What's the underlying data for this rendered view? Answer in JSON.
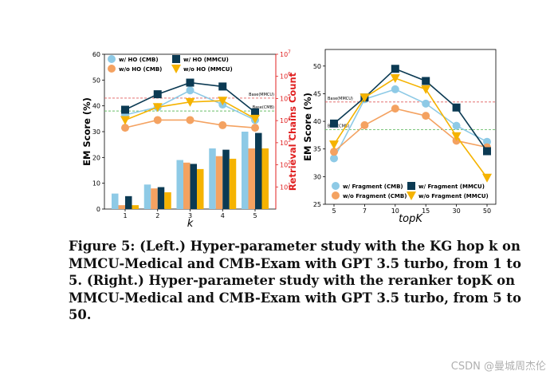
{
  "chart_data": [
    {
      "type": "bar+line",
      "xlabel": "k",
      "ylabel": "EM Score (%)",
      "y2label": "Retrieval Chains Count",
      "categories": [
        "1",
        "2",
        "3",
        "4",
        "5"
      ],
      "ylim": [
        0,
        60
      ],
      "yticks": [
        "0",
        "10",
        "20",
        "30",
        "40",
        "50",
        "60"
      ],
      "y2scale": "log",
      "y2lim": [
        1,
        10000000
      ],
      "y2ticks": [
        {
          "base": "10",
          "exp": "1",
          "value": 10
        },
        {
          "base": "10",
          "exp": "2",
          "value": 100
        },
        {
          "base": "10",
          "exp": "3",
          "value": 1000
        },
        {
          "base": "10",
          "exp": "4",
          "value": 10000
        },
        {
          "base": "10",
          "exp": "5",
          "value": 100000
        },
        {
          "base": "10",
          "exp": "6",
          "value": 1000000
        },
        {
          "base": "10",
          "exp": "7",
          "value": 10000000
        }
      ],
      "lines": [
        {
          "name": "w/ HO (CMB)",
          "color": "#8ecae6",
          "marker": "circle",
          "values": [
            36.5,
            39.5,
            46.0,
            40.5,
            34.5
          ]
        },
        {
          "name": "w/o HO (CMB)",
          "color": "#f4a261",
          "marker": "circle",
          "values": [
            31.5,
            34.5,
            34.5,
            32.5,
            31.5
          ]
        },
        {
          "name": "w/ HO (MMCU)",
          "color": "#0b3a53",
          "marker": "square",
          "values": [
            38.5,
            44.5,
            49.0,
            47.5,
            37.5
          ]
        },
        {
          "name": "w/o HO (MMCU)",
          "color": "#f5b301",
          "marker": "triangle-down",
          "values": [
            34.5,
            39.5,
            41.5,
            42.0,
            35.0
          ]
        }
      ],
      "bars": [
        {
          "color": "#8ecae6",
          "values": [
            6.0,
            9.5,
            19.0,
            23.5,
            30.0
          ]
        },
        {
          "color": "#f4a261",
          "values": [
            1.5,
            8.0,
            18.0,
            20.5,
            23.5
          ]
        },
        {
          "color": "#0b3a53",
          "values": [
            5.0,
            8.5,
            17.5,
            23.0,
            29.5
          ]
        },
        {
          "color": "#f5b301",
          "values": [
            1.5,
            6.5,
            15.5,
            19.5,
            23.5
          ]
        }
      ],
      "baselines": [
        {
          "label": "Base(MMCU)",
          "value": 43.0,
          "color": "#e05c5c"
        },
        {
          "label": "Base(CMB)",
          "value": 38.0,
          "color": "#6abf69"
        }
      ]
    },
    {
      "type": "line",
      "xlabel": "topK",
      "ylabel": "EM Score (%)",
      "categories": [
        "5",
        "7",
        "10",
        "15",
        "30",
        "50"
      ],
      "ylim": [
        25,
        53
      ],
      "yticks": [
        "25",
        "30",
        "35",
        "40",
        "45",
        "50"
      ],
      "series": [
        {
          "name": "w/ Fragment (CMB)",
          "color": "#8ecae6",
          "marker": "circle",
          "values": [
            33.3,
            44.0,
            45.8,
            43.2,
            39.2,
            36.3
          ]
        },
        {
          "name": "w/o Fragment (CMB)",
          "color": "#f4a261",
          "marker": "circle",
          "values": [
            34.5,
            39.3,
            42.3,
            41.0,
            36.5,
            35.3
          ]
        },
        {
          "name": "w/ Fragment (MMCU)",
          "color": "#0b3a53",
          "marker": "square",
          "values": [
            39.6,
            44.3,
            49.5,
            47.3,
            42.5,
            34.6
          ]
        },
        {
          "name": "w/o Fragment (MMCU)",
          "color": "#f5b301",
          "marker": "triangle-down",
          "values": [
            35.8,
            44.3,
            47.8,
            45.8,
            37.3,
            29.8
          ]
        }
      ],
      "baselines": [
        {
          "label": "Base(MMCU)",
          "value": 43.5,
          "color": "#e05c5c"
        },
        {
          "label": "Base(CMB)",
          "value": 38.5,
          "color": "#6abf69"
        }
      ]
    }
  ],
  "caption": "Figure 5: (Left.) Hyper-parameter study with the KG hop k on MMCU-Medical and CMB-Exam with GPT 3.5 turbo, from 1 to 5. (Right.) Hyper-parameter study with the reranker topK on MMCU-Medical and CMB-Exam with GPT 3.5 turbo, from 5 to 50.",
  "watermark": "CSDN @曼城周杰伦"
}
